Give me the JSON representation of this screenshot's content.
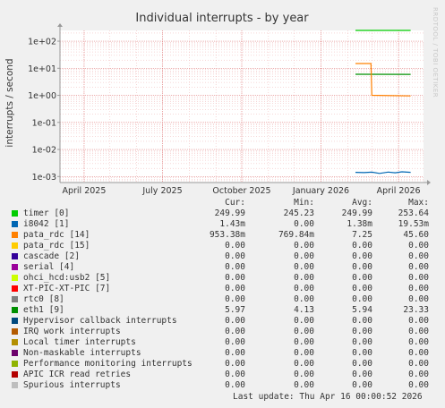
{
  "chart_data": {
    "type": "line",
    "title": "Individual interrupts - by year",
    "ylabel": "interrupts / second",
    "yscale": "log",
    "ylim": [
      0.0006,
      250
    ],
    "y_ticks": [
      {
        "value": 100,
        "label": "1e+02"
      },
      {
        "value": 10,
        "label": "1e+01"
      },
      {
        "value": 1,
        "label": "1e+00"
      },
      {
        "value": 0.1,
        "label": "1e-01"
      },
      {
        "value": 0.01,
        "label": "1e-02"
      },
      {
        "value": 0.001,
        "label": "1e-03"
      }
    ],
    "xlim": [
      "2025-03-04",
      "2026-04-30"
    ],
    "x_ticks": [
      {
        "value": "2025-04-01",
        "label": "April 2025"
      },
      {
        "value": "2025-07-01",
        "label": "July 2025"
      },
      {
        "value": "2025-10-01",
        "label": "October 2025"
      },
      {
        "value": "2026-01-01",
        "label": "January 2026"
      },
      {
        "value": "2026-04-01",
        "label": "April 2026"
      }
    ],
    "grid": true,
    "watermark": "RRDTOOL / TOBI OETIKER",
    "series": [
      {
        "name": "timer [0]",
        "color": "#00cc00",
        "x": [
          "2026-02-10",
          "2026-04-15"
        ],
        "y": [
          249.99,
          249.99
        ]
      },
      {
        "name": "eth1 [9]",
        "color": "#008f00",
        "x": [
          "2026-02-10",
          "2026-04-15"
        ],
        "y": [
          6.0,
          5.97
        ]
      },
      {
        "name": "pata_rdc [14]",
        "color": "#ff8000",
        "x": [
          "2026-02-10",
          "2026-02-28",
          "2026-03-01",
          "2026-04-15"
        ],
        "y": [
          15.0,
          15.0,
          1.0,
          0.95338
        ]
      },
      {
        "name": "i8042 [1]",
        "color": "#0066b3",
        "x": [
          "2026-02-10",
          "2026-02-20",
          "2026-03-01",
          "2026-03-10",
          "2026-03-20",
          "2026-03-28",
          "2026-04-05",
          "2026-04-15"
        ],
        "y": [
          0.00143,
          0.0014,
          0.00145,
          0.0013,
          0.00146,
          0.00138,
          0.0015,
          0.00143
        ]
      }
    ],
    "legend": {
      "columns": [
        "Cur:",
        "Min:",
        "Avg:",
        "Max:"
      ],
      "rows": [
        {
          "name": "timer [0]",
          "color": "#00cc00",
          "cur": "249.99",
          "min": "245.23",
          "avg": "249.99",
          "max": "253.64"
        },
        {
          "name": "i8042 [1]",
          "color": "#0066b3",
          "cur": "1.43m",
          "min": "0.00",
          "avg": "1.38m",
          "max": "19.53m"
        },
        {
          "name": "pata_rdc [14]",
          "color": "#ff8000",
          "cur": "953.38m",
          "min": "769.84m",
          "avg": "7.25",
          "max": "45.60"
        },
        {
          "name": "pata_rdc [15]",
          "color": "#ffcc00",
          "cur": "0.00",
          "min": "0.00",
          "avg": "0.00",
          "max": "0.00"
        },
        {
          "name": "cascade [2]",
          "color": "#330099",
          "cur": "0.00",
          "min": "0.00",
          "avg": "0.00",
          "max": "0.00"
        },
        {
          "name": "serial [4]",
          "color": "#990099",
          "cur": "0.00",
          "min": "0.00",
          "avg": "0.00",
          "max": "0.00"
        },
        {
          "name": "ohci_hcd:usb2 [5]",
          "color": "#ccff00",
          "cur": "0.00",
          "min": "0.00",
          "avg": "0.00",
          "max": "0.00"
        },
        {
          "name": "XT-PIC-XT-PIC [7]",
          "color": "#ff0000",
          "cur": "0.00",
          "min": "0.00",
          "avg": "0.00",
          "max": "0.00"
        },
        {
          "name": "rtc0 [8]",
          "color": "#808080",
          "cur": "0.00",
          "min": "0.00",
          "avg": "0.00",
          "max": "0.00"
        },
        {
          "name": "eth1 [9]",
          "color": "#008f00",
          "cur": "5.97",
          "min": "4.13",
          "avg": "5.94",
          "max": "23.33"
        },
        {
          "name": "Hypervisor callback interrupts",
          "color": "#00487d",
          "cur": "0.00",
          "min": "0.00",
          "avg": "0.00",
          "max": "0.00"
        },
        {
          "name": "IRQ work interrupts",
          "color": "#b35a00",
          "cur": "0.00",
          "min": "0.00",
          "avg": "0.00",
          "max": "0.00"
        },
        {
          "name": "Local timer interrupts",
          "color": "#b38f00",
          "cur": "0.00",
          "min": "0.00",
          "avg": "0.00",
          "max": "0.00"
        },
        {
          "name": "Non-maskable interrupts",
          "color": "#6b006b",
          "cur": "0.00",
          "min": "0.00",
          "avg": "0.00",
          "max": "0.00"
        },
        {
          "name": "Performance monitoring interrupts",
          "color": "#8fb300",
          "cur": "0.00",
          "min": "0.00",
          "avg": "0.00",
          "max": "0.00"
        },
        {
          "name": "APIC ICR read retries",
          "color": "#b30000",
          "cur": "0.00",
          "min": "0.00",
          "avg": "0.00",
          "max": "0.00"
        },
        {
          "name": "Spurious interrupts",
          "color": "#bebebe",
          "cur": "0.00",
          "min": "0.00",
          "avg": "0.00",
          "max": "0.00"
        }
      ]
    },
    "last_update": "Last update: Thu Apr 16 00:00:52 2026"
  }
}
